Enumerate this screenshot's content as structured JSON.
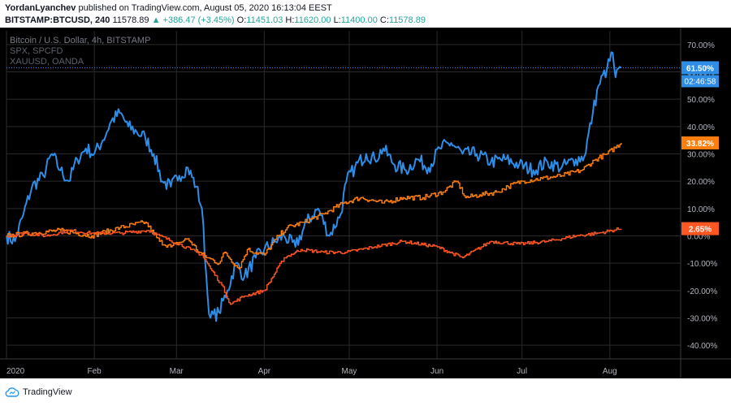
{
  "header": {
    "author": "YordanLyanchev",
    "published_text": "published on TradingView.com, August 05, 2020 16:13:04 EEST",
    "symbol": "BITSTAMP:BTCUSD, 240",
    "last": "11578.89",
    "change": "▲ +386.47 (+3.45%)",
    "open_label": "O:",
    "open": "11451.03",
    "high_label": "H:",
    "high": "11620.00",
    "low_label": "L:",
    "low": "11400.00",
    "close_label": "C:",
    "close": "11578.89"
  },
  "footer": {
    "brand": "TradingView"
  },
  "colors": {
    "btc": "#2e8de6",
    "spx": "#ff7f0e",
    "xau": "#ff5722",
    "bg": "#000000",
    "grid": "#2a2a2a",
    "axis_text": "#b2b5be"
  },
  "chart_data": {
    "type": "line",
    "title": "Bitcoin / U.S. Dollar, 4h, BITSTAMP",
    "legend": [
      "Bitcoin / U.S. Dollar, 4h, BITSTAMP",
      "SPX, SPCFD",
      "XAUUSD, OANDA"
    ],
    "ylabel": "",
    "y_unit": "%",
    "ylim": [
      -45,
      75
    ],
    "y_ticks": [
      "70.00%",
      "60.00%",
      "50.00%",
      "40.00%",
      "30.00%",
      "20.00%",
      "10.00%",
      "0.00%",
      "-10.00%",
      "-20.00%",
      "-30.00%",
      "-40.00%"
    ],
    "y_tick_values": [
      70,
      60,
      50,
      40,
      30,
      20,
      10,
      0,
      -10,
      -20,
      -30,
      -40
    ],
    "x_ticks": [
      "2020",
      "Feb",
      "Mar",
      "Apr",
      "May",
      "Jun",
      "Jul",
      "Aug"
    ],
    "x_tick_dates": [
      "2020-01-01",
      "2020-02-01",
      "2020-03-01",
      "2020-04-01",
      "2020-05-01",
      "2020-06-01",
      "2020-07-01",
      "2020-08-01"
    ],
    "x_range": [
      "2020-01-01",
      "2020-08-26"
    ],
    "grid": true,
    "series": [
      {
        "name": "Bitcoin / U.S. Dollar, 4h, BITSTAMP",
        "color": "#2e8de6",
        "last_label": "61.50%",
        "countdown": "02:46:58",
        "x": [
          "2020-01-01",
          "2020-01-04",
          "2020-01-07",
          "2020-01-10",
          "2020-01-14",
          "2020-01-17",
          "2020-01-20",
          "2020-01-23",
          "2020-01-26",
          "2020-01-29",
          "2020-02-01",
          "2020-02-04",
          "2020-02-07",
          "2020-02-10",
          "2020-02-13",
          "2020-02-16",
          "2020-02-19",
          "2020-02-22",
          "2020-02-25",
          "2020-02-28",
          "2020-03-02",
          "2020-03-05",
          "2020-03-08",
          "2020-03-10",
          "2020-03-12",
          "2020-03-13",
          "2020-03-16",
          "2020-03-19",
          "2020-03-22",
          "2020-03-25",
          "2020-03-29",
          "2020-04-01",
          "2020-04-05",
          "2020-04-08",
          "2020-04-12",
          "2020-04-16",
          "2020-04-20",
          "2020-04-24",
          "2020-04-28",
          "2020-04-30",
          "2020-05-03",
          "2020-05-07",
          "2020-05-10",
          "2020-05-13",
          "2020-05-17",
          "2020-05-21",
          "2020-05-25",
          "2020-05-29",
          "2020-06-02",
          "2020-06-06",
          "2020-06-10",
          "2020-06-15",
          "2020-06-20",
          "2020-06-25",
          "2020-06-30",
          "2020-07-05",
          "2020-07-10",
          "2020-07-15",
          "2020-07-20",
          "2020-07-23",
          "2020-07-26",
          "2020-07-28",
          "2020-07-31",
          "2020-08-02",
          "2020-08-03",
          "2020-08-05"
        ],
        "y": [
          0,
          -2,
          8,
          18,
          22,
          30,
          24,
          20,
          28,
          32,
          30,
          35,
          42,
          45,
          40,
          38,
          36,
          30,
          20,
          18,
          22,
          25,
          18,
          10,
          -22,
          -30,
          -28,
          -20,
          -10,
          -15,
          -8,
          -5,
          -2,
          0,
          -4,
          5,
          10,
          0,
          8,
          20,
          25,
          30,
          28,
          32,
          26,
          24,
          28,
          25,
          32,
          34,
          30,
          30,
          27,
          28,
          26,
          24,
          27,
          25,
          28,
          29,
          45,
          55,
          61,
          67,
          58,
          61.5
        ]
      },
      {
        "name": "SPX, SPCFD",
        "color": "#ff7f0e",
        "last_label": "33.82%",
        "x": [
          "2020-01-01",
          "2020-01-10",
          "2020-01-20",
          "2020-01-31",
          "2020-02-10",
          "2020-02-19",
          "2020-02-24",
          "2020-02-28",
          "2020-03-05",
          "2020-03-09",
          "2020-03-12",
          "2020-03-16",
          "2020-03-18",
          "2020-03-23",
          "2020-03-26",
          "2020-04-01",
          "2020-04-06",
          "2020-04-09",
          "2020-04-15",
          "2020-04-22",
          "2020-04-29",
          "2020-05-05",
          "2020-05-13",
          "2020-05-20",
          "2020-05-27",
          "2020-06-03",
          "2020-06-08",
          "2020-06-11",
          "2020-06-16",
          "2020-06-22",
          "2020-06-26",
          "2020-07-01",
          "2020-07-08",
          "2020-07-15",
          "2020-07-22",
          "2020-07-27",
          "2020-07-31",
          "2020-08-05"
        ],
        "y": [
          0,
          1,
          2,
          0,
          3,
          5,
          -2,
          -4,
          -1,
          -6,
          -8,
          -10,
          -6,
          -12,
          -5,
          -7,
          0,
          3,
          5,
          8,
          12,
          14,
          12,
          14,
          14,
          16,
          20,
          14,
          15,
          16,
          18,
          20,
          21,
          22,
          24,
          28,
          30,
          34
        ]
      },
      {
        "name": "XAUUSD, OANDA",
        "color": "#ff5722",
        "last_label": "2.65%",
        "x": [
          "2020-01-01",
          "2020-01-08",
          "2020-01-15",
          "2020-01-23",
          "2020-01-31",
          "2020-02-10",
          "2020-02-20",
          "2020-02-24",
          "2020-03-02",
          "2020-03-06",
          "2020-03-10",
          "2020-03-13",
          "2020-03-17",
          "2020-03-20",
          "2020-03-25",
          "2020-04-01",
          "2020-04-08",
          "2020-04-14",
          "2020-04-22",
          "2020-04-30",
          "2020-05-10",
          "2020-05-20",
          "2020-06-01",
          "2020-06-10",
          "2020-06-20",
          "2020-06-30",
          "2020-07-10",
          "2020-07-20",
          "2020-07-28",
          "2020-08-05"
        ],
        "y": [
          0,
          1,
          0,
          2,
          1,
          1,
          2,
          0,
          -3,
          -5,
          -7,
          -12,
          -18,
          -25,
          -22,
          -20,
          -8,
          -5,
          -6,
          -6,
          -4,
          -2,
          -4,
          -8,
          -2,
          -3,
          -2,
          0,
          1,
          2.65
        ]
      }
    ]
  }
}
